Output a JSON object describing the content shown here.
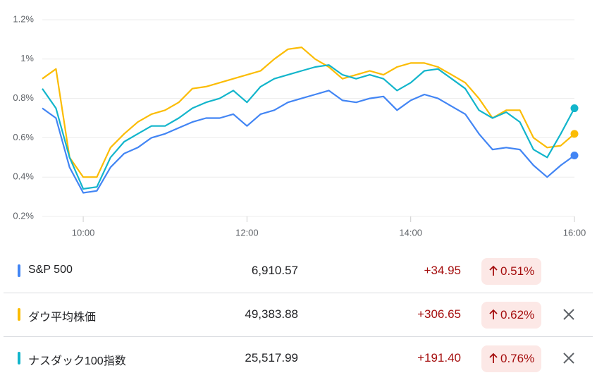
{
  "chart_data": {
    "type": "line",
    "x": [
      "09:30",
      "09:40",
      "09:50",
      "10:00",
      "10:10",
      "10:20",
      "10:30",
      "10:40",
      "10:50",
      "11:00",
      "11:10",
      "11:20",
      "11:30",
      "11:40",
      "11:50",
      "12:00",
      "12:10",
      "12:20",
      "12:30",
      "12:40",
      "12:50",
      "13:00",
      "13:10",
      "13:20",
      "13:30",
      "13:40",
      "13:50",
      "14:00",
      "14:10",
      "14:20",
      "14:30",
      "14:40",
      "14:50",
      "15:00",
      "15:10",
      "15:20",
      "15:30",
      "15:40",
      "15:50",
      "16:00"
    ],
    "xlim": [
      "09:30",
      "16:00"
    ],
    "xticks": [
      "10:00",
      "12:00",
      "14:00",
      "16:00"
    ],
    "ylim": [
      0.2,
      1.2
    ],
    "yticks": [
      {
        "value": 0.2,
        "label": "0.2%"
      },
      {
        "value": 0.4,
        "label": "0.4%"
      },
      {
        "value": 0.6,
        "label": "0.6%"
      },
      {
        "value": 0.8,
        "label": "0.8%"
      },
      {
        "value": 1,
        "label": "1%"
      },
      {
        "value": 1.2,
        "label": "1.2%"
      }
    ],
    "grid": true,
    "series": [
      {
        "name": "S&P 500",
        "color": "#4285f4",
        "values": [
          0.75,
          0.7,
          0.45,
          0.32,
          0.33,
          0.45,
          0.52,
          0.55,
          0.6,
          0.62,
          0.65,
          0.68,
          0.7,
          0.7,
          0.72,
          0.66,
          0.72,
          0.74,
          0.78,
          0.8,
          0.82,
          0.84,
          0.79,
          0.78,
          0.8,
          0.81,
          0.74,
          0.79,
          0.82,
          0.8,
          0.76,
          0.72,
          0.62,
          0.54,
          0.55,
          0.54,
          0.46,
          0.4,
          0.46,
          0.51
        ]
      },
      {
        "name": "ダウ平均株価",
        "color": "#fbbc04",
        "values": [
          0.9,
          0.95,
          0.5,
          0.4,
          0.4,
          0.55,
          0.62,
          0.68,
          0.72,
          0.74,
          0.78,
          0.85,
          0.86,
          0.88,
          0.9,
          0.92,
          0.94,
          1.0,
          1.05,
          1.06,
          1.0,
          0.96,
          0.9,
          0.92,
          0.94,
          0.92,
          0.96,
          0.98,
          0.98,
          0.96,
          0.92,
          0.88,
          0.8,
          0.7,
          0.74,
          0.74,
          0.6,
          0.55,
          0.56,
          0.62
        ]
      },
      {
        "name": "ナスダック100指数",
        "color": "#12b5cb",
        "values": [
          0.85,
          0.75,
          0.5,
          0.34,
          0.35,
          0.5,
          0.58,
          0.62,
          0.66,
          0.66,
          0.7,
          0.75,
          0.78,
          0.8,
          0.84,
          0.78,
          0.86,
          0.9,
          0.92,
          0.94,
          0.96,
          0.97,
          0.92,
          0.9,
          0.92,
          0.9,
          0.84,
          0.88,
          0.94,
          0.95,
          0.9,
          0.85,
          0.74,
          0.7,
          0.73,
          0.68,
          0.54,
          0.5,
          0.62,
          0.75
        ]
      }
    ]
  },
  "table": {
    "rows": [
      {
        "price": "6,910.57",
        "change": "+34.95",
        "percent": "0.51%",
        "removable": false
      },
      {
        "price": "49,383.88",
        "change": "+306.65",
        "percent": "0.62%",
        "removable": true
      },
      {
        "price": "25,517.99",
        "change": "+191.40",
        "percent": "0.76%",
        "removable": true
      }
    ]
  }
}
